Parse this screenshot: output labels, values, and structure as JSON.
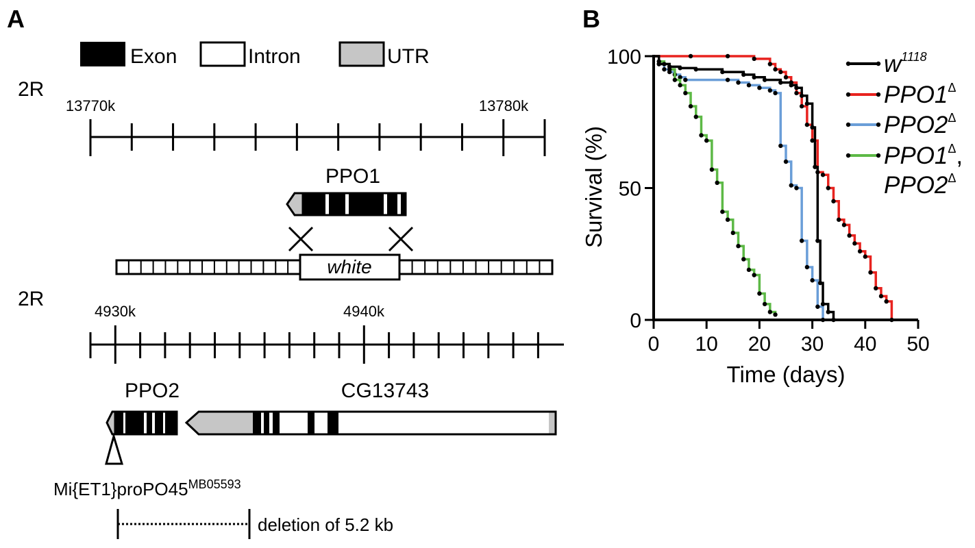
{
  "panel_a": {
    "label": "A",
    "legend": {
      "exon": "Exon",
      "intron": "Intron",
      "utr": "UTR"
    },
    "locus1": {
      "chrom": "2R",
      "start_label": "13770k",
      "end_label": "13780k",
      "gene": "PPO1",
      "marker": "white"
    },
    "locus2": {
      "chrom": "2R",
      "start_label": "4930k",
      "mid_label": "4940k",
      "gene_left": "PPO2",
      "gene_right": "CG13743",
      "insertion_base": "Mi{ET1}proPO45",
      "insertion_sup": "MB05593",
      "deletion_text": "deletion of 5.2 kb"
    }
  },
  "panel_b": {
    "label": "B"
  },
  "chart_data": {
    "type": "line",
    "subtype": "kaplan-meier step",
    "xlabel": "Time (days)",
    "ylabel": "Survival (%)",
    "xlim": [
      0,
      50
    ],
    "ylim": [
      0,
      100
    ],
    "xticks": [
      "0",
      "10",
      "20",
      "30",
      "40",
      "50"
    ],
    "yticks": [
      "0",
      "50",
      "100"
    ],
    "legend_position": "top-right",
    "series": [
      {
        "name": "w",
        "name_sup": "1118",
        "color": "#000000",
        "points": [
          [
            0,
            100
          ],
          [
            1,
            97
          ],
          [
            3,
            96
          ],
          [
            5,
            95.5
          ],
          [
            8,
            95
          ],
          [
            13,
            94
          ],
          [
            17,
            93
          ],
          [
            19,
            92
          ],
          [
            21,
            91
          ],
          [
            24,
            90
          ],
          [
            26,
            89
          ],
          [
            27,
            88
          ],
          [
            28,
            85
          ],
          [
            29,
            82
          ],
          [
            30,
            73
          ],
          [
            30.5,
            58
          ],
          [
            31,
            30
          ],
          [
            31.5,
            14
          ],
          [
            32,
            6
          ],
          [
            33,
            3
          ],
          [
            34,
            0
          ]
        ]
      },
      {
        "name": "PPO1",
        "name_sup": "Δ",
        "color": "#e8231f",
        "points": [
          [
            0,
            100
          ],
          [
            7,
            100
          ],
          [
            14,
            100
          ],
          [
            19,
            99
          ],
          [
            22,
            97
          ],
          [
            23,
            95
          ],
          [
            24,
            94
          ],
          [
            25,
            92
          ],
          [
            26,
            90
          ],
          [
            27,
            86
          ],
          [
            28,
            81
          ],
          [
            29,
            74
          ],
          [
            30,
            68
          ],
          [
            31,
            56
          ],
          [
            32,
            55
          ],
          [
            33,
            50
          ],
          [
            34,
            45
          ],
          [
            35,
            38
          ],
          [
            36,
            36
          ],
          [
            37,
            32
          ],
          [
            38,
            29
          ],
          [
            39,
            26
          ],
          [
            40,
            24
          ],
          [
            41,
            18
          ],
          [
            42,
            12
          ],
          [
            43,
            9
          ],
          [
            44,
            7
          ],
          [
            45,
            0
          ]
        ]
      },
      {
        "name": "PPO2",
        "name_sup": "Δ",
        "color": "#6a9ed8",
        "points": [
          [
            0,
            100
          ],
          [
            1,
            97
          ],
          [
            2,
            95
          ],
          [
            3,
            94
          ],
          [
            4,
            93
          ],
          [
            5,
            92
          ],
          [
            6,
            91
          ],
          [
            14,
            91
          ],
          [
            16,
            90
          ],
          [
            18,
            89
          ],
          [
            20,
            88
          ],
          [
            22,
            87
          ],
          [
            23,
            86
          ],
          [
            24,
            66
          ],
          [
            25,
            60
          ],
          [
            26,
            51
          ],
          [
            27,
            50
          ],
          [
            28,
            30
          ],
          [
            29,
            20
          ],
          [
            30,
            15
          ],
          [
            31,
            5
          ],
          [
            32,
            0
          ]
        ]
      },
      {
        "name": "PPO1, PPO2",
        "name_sup": "Δ",
        "color": "#5db946",
        "points": [
          [
            0,
            100
          ],
          [
            1,
            98
          ],
          [
            2,
            97
          ],
          [
            3,
            95
          ],
          [
            4,
            91
          ],
          [
            5,
            89
          ],
          [
            6,
            86
          ],
          [
            7,
            81
          ],
          [
            8,
            77
          ],
          [
            9,
            70
          ],
          [
            10,
            68
          ],
          [
            11,
            57
          ],
          [
            12,
            52
          ],
          [
            13,
            41
          ],
          [
            14,
            38
          ],
          [
            15,
            33
          ],
          [
            16,
            28
          ],
          [
            17,
            23
          ],
          [
            18,
            19
          ],
          [
            19,
            17
          ],
          [
            20,
            10
          ],
          [
            21,
            6
          ],
          [
            22,
            3
          ],
          [
            23,
            2
          ]
        ]
      }
    ]
  }
}
